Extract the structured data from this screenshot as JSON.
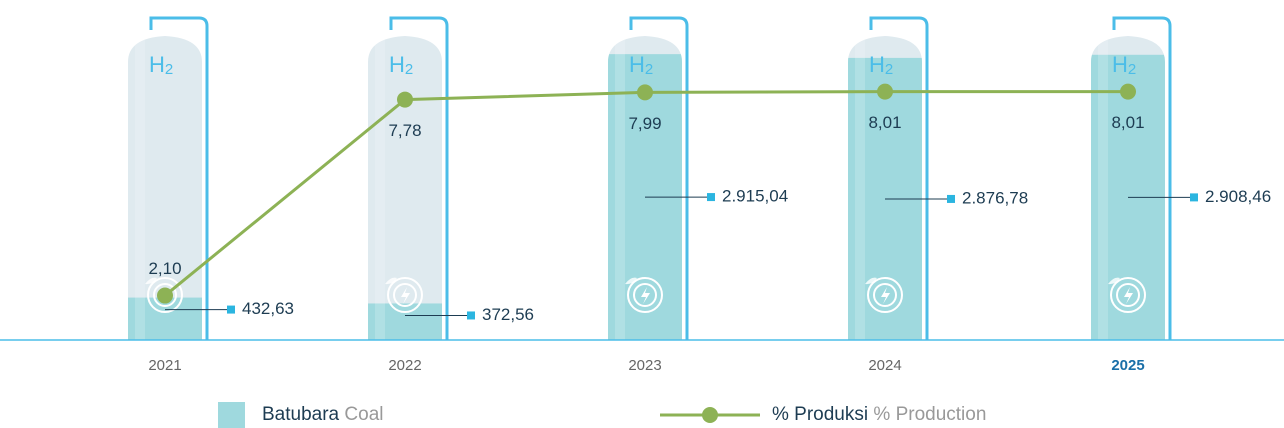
{
  "chart_data": {
    "type": "bar",
    "tank_label": [
      "H",
      "2"
    ],
    "categories": [
      "2021",
      "2022",
      "2023",
      "2024",
      "2025"
    ],
    "category_colors": [
      "#666666",
      "#666666",
      "#666666",
      "#666666",
      "#1a6fa8"
    ],
    "ylim": [
      0,
      3100
    ],
    "y2lim": [
      0,
      10
    ],
    "series": [
      {
        "name": "Batubara",
        "name_en": "Coal",
        "type": "bar",
        "color": "#9fd9de",
        "values": [
          432.63,
          372.56,
          2915.04,
          2876.78,
          2908.46
        ],
        "value_labels": [
          "432,63",
          "372,56",
          "2.915,04",
          "2.876,78",
          "2.908,46"
        ]
      },
      {
        "name": "% Produksi",
        "name_en": "% Production",
        "type": "line",
        "axis": "y2",
        "color": "#8db255",
        "values": [
          2.1,
          7.78,
          7.99,
          8.01,
          8.01
        ],
        "value_labels": [
          "2,10",
          "7,78",
          "7,99",
          "8,01",
          "8,01"
        ]
      }
    ]
  }
}
